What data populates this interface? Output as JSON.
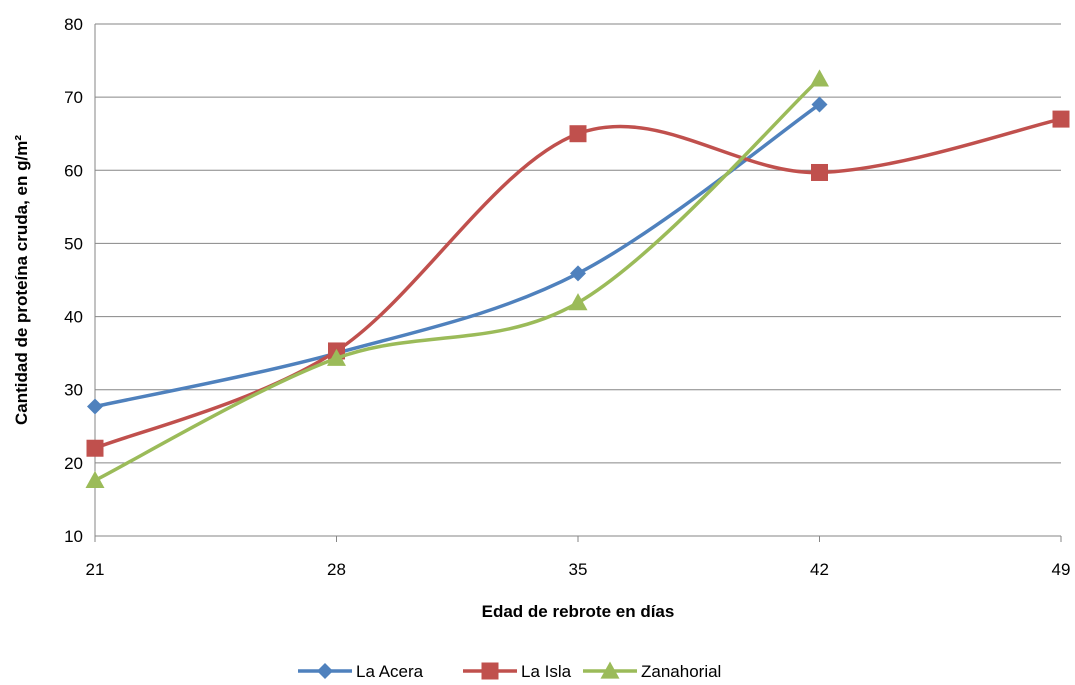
{
  "chart_data": {
    "type": "line",
    "x": [
      21,
      28,
      35,
      42,
      49
    ],
    "xlabel": "Edad de rebrote en días",
    "ylabel": "Cantidad de proteína cruda, en g/m²",
    "ylim": [
      10,
      80
    ],
    "xticks": [
      "21",
      "28",
      "35",
      "42",
      "49"
    ],
    "yticks": [
      "10",
      "20",
      "30",
      "40",
      "50",
      "60",
      "70",
      "80"
    ],
    "grid": true,
    "legend_position": "bottom",
    "series": [
      {
        "name": "La Acera",
        "color": "#4F81BD",
        "marker": "diamond",
        "values": [
          27.7,
          35.0,
          45.9,
          69.0,
          null
        ]
      },
      {
        "name": "La Isla",
        "color": "#C0504D",
        "marker": "square",
        "values": [
          22.0,
          35.3,
          65.0,
          59.7,
          67.0
        ]
      },
      {
        "name": "Zanahorial",
        "color": "#9BBB59",
        "marker": "triangle",
        "values": [
          17.6,
          34.3,
          41.9,
          72.5,
          null
        ]
      }
    ]
  }
}
